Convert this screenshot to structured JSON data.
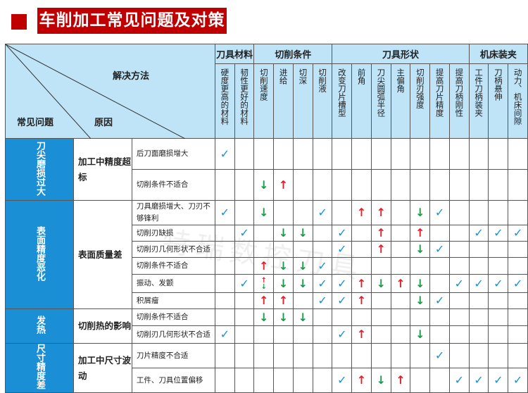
{
  "title": "车削加工常见问题及对策",
  "watermark": "特瑞数控刀具",
  "header": {
    "corner": {
      "solution": "解决方法",
      "problem": "常见问题",
      "cause": "原因"
    },
    "groups": [
      {
        "label": "刀具材料",
        "span": 2
      },
      {
        "label": "切削条件",
        "span": 4
      },
      {
        "label": "刀具形状",
        "span": 7
      },
      {
        "label": "机床装夹",
        "span": 3
      }
    ],
    "columns": [
      "硬度更高的材料",
      "韧性更好的材料",
      "切削速度",
      "进给",
      "切深",
      "切削液",
      "改变刀片槽型",
      "前角",
      "刀尖圆弧半径",
      "主偏角",
      "切削刃强度",
      "提高刀片精度",
      "提高刀柄刚性",
      "工件刀柄装夹",
      "刀柄悬伸",
      "动力、机床间隙"
    ]
  },
  "legend_marks": {
    "check": "✓",
    "up": "↑",
    "down": "↓"
  },
  "colors": {
    "title_bg": "#c00000",
    "header_bg": "#bfe3f7",
    "category_bg": "#1a8fd6",
    "check": "#1a8fd6",
    "up": "#e0202a",
    "down": "#1a9a4a"
  },
  "categories": [
    {
      "label": "刀尖磨损过大",
      "problem": "加工中精度超标",
      "rows": [
        {
          "cause": "后刀面磨损增大",
          "marks": [
            "check",
            "",
            "",
            "",
            "",
            "",
            "",
            "",
            "",
            "",
            "",
            "",
            "",
            "",
            "",
            ""
          ]
        },
        {
          "cause": "切削条件不适合",
          "marks": [
            "",
            "",
            "down",
            "up",
            "",
            "",
            "",
            "",
            "",
            "",
            "",
            "",
            "",
            "",
            "",
            ""
          ]
        }
      ]
    },
    {
      "label": "表面精度恶化",
      "problem": "表面质量差",
      "rows": [
        {
          "cause": "刀具磨损增大、刀刃不够锋利",
          "marks": [
            "check",
            "",
            "down",
            "",
            "",
            "check",
            "",
            "up",
            "up",
            "",
            "down",
            "check",
            "",
            "",
            "",
            ""
          ]
        },
        {
          "cause": "切削刃缺损",
          "marks": [
            "",
            "check",
            "",
            "down",
            "down",
            "",
            "check",
            "",
            "up",
            "",
            "up",
            "",
            "",
            "check",
            "check",
            "check"
          ]
        },
        {
          "cause": "切削刃几何形状不合适",
          "marks": [
            "",
            "",
            "",
            "",
            "",
            "",
            "check",
            "",
            "up",
            "",
            "down",
            "check",
            "",
            "",
            "",
            ""
          ]
        },
        {
          "cause": "切削条件不适合",
          "marks": [
            "",
            "",
            "up",
            "down",
            "down",
            "check",
            "",
            "",
            "",
            "",
            "",
            "",
            "",
            "",
            "",
            ""
          ]
        },
        {
          "cause": "振动、发颤",
          "marks": [
            "",
            "check",
            "updown",
            "down",
            "down",
            "check",
            "check",
            "up",
            "down",
            "up",
            "down",
            "",
            "check",
            "check",
            "check",
            "check"
          ]
        },
        {
          "cause": "积屑瘤",
          "marks": [
            "",
            "",
            "up",
            "up",
            "",
            "check",
            "check",
            "up",
            "",
            "",
            "down",
            "check",
            "",
            "",
            "",
            ""
          ]
        }
      ]
    },
    {
      "label": "发热",
      "problem": "切削热的影响",
      "rows": [
        {
          "cause": "切削条件不适合",
          "marks": [
            "",
            "",
            "down",
            "down",
            "down",
            "",
            "",
            "",
            "",
            "",
            "",
            "",
            "",
            "",
            "",
            ""
          ]
        },
        {
          "cause": "切削刃几何形状不合适",
          "marks": [
            "check",
            "",
            "",
            "",
            "",
            "",
            "check",
            "up",
            "",
            "",
            "down",
            "",
            "",
            "",
            "",
            ""
          ]
        }
      ]
    },
    {
      "label": "尺寸精度差",
      "problem": "加工中尺寸波动",
      "rows": [
        {
          "cause": "刀片精度不合适",
          "marks": [
            "",
            "",
            "",
            "",
            "",
            "",
            "",
            "",
            "",
            "",
            "",
            "check",
            "",
            "",
            "",
            ""
          ]
        },
        {
          "cause": "工件、刀具位置偏移",
          "marks": [
            "",
            "",
            "",
            "",
            "",
            "",
            "check",
            "up",
            "down",
            "up",
            "",
            "",
            "check",
            "check",
            "check",
            "check"
          ]
        }
      ]
    }
  ]
}
